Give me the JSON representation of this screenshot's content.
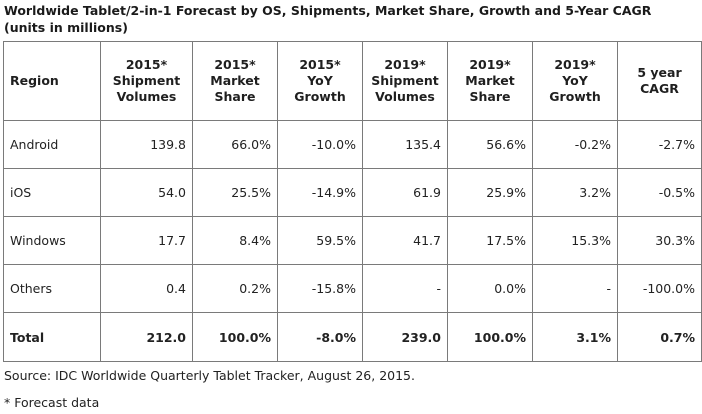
{
  "title": "Worldwide Tablet/2-in-1 Forecast by OS, Shipments, Market Share, Growth and 5-Year CAGR (units in millions)",
  "columns": [
    {
      "lines": [
        "Region"
      ]
    },
    {
      "lines": [
        "2015*",
        "Shipment",
        "Volumes"
      ]
    },
    {
      "lines": [
        "2015*",
        "Market",
        "Share"
      ]
    },
    {
      "lines": [
        "2015*",
        "YoY",
        "Growth"
      ]
    },
    {
      "lines": [
        "2019*",
        "Shipment",
        "Volumes"
      ]
    },
    {
      "lines": [
        "2019*",
        "Market",
        "Share"
      ]
    },
    {
      "lines": [
        "2019*",
        "YoY",
        "Growth"
      ]
    },
    {
      "lines": [
        "5 year",
        "CAGR"
      ]
    }
  ],
  "rows": [
    [
      "Android",
      "139.8",
      "66.0%",
      "-10.0%",
      "135.4",
      "56.6%",
      "-0.2%",
      "-2.7%"
    ],
    [
      "iOS",
      "54.0",
      "25.5%",
      "-14.9%",
      "61.9",
      "25.9%",
      "3.2%",
      "-0.5%"
    ],
    [
      "Windows",
      "17.7",
      "8.4%",
      "59.5%",
      "41.7",
      "17.5%",
      "15.3%",
      "30.3%"
    ],
    [
      "Others",
      "0.4",
      "0.2%",
      "-15.8%",
      "-",
      "0.0%",
      "-",
      "-100.0%"
    ],
    [
      "Total",
      "212.0",
      "100.0%",
      "-8.0%",
      "239.0",
      "100.0%",
      "3.1%",
      "0.7%"
    ]
  ],
  "source": "Source: IDC Worldwide Quarterly Tablet Tracker, August 26, 2015.",
  "note": "* Forecast data"
}
